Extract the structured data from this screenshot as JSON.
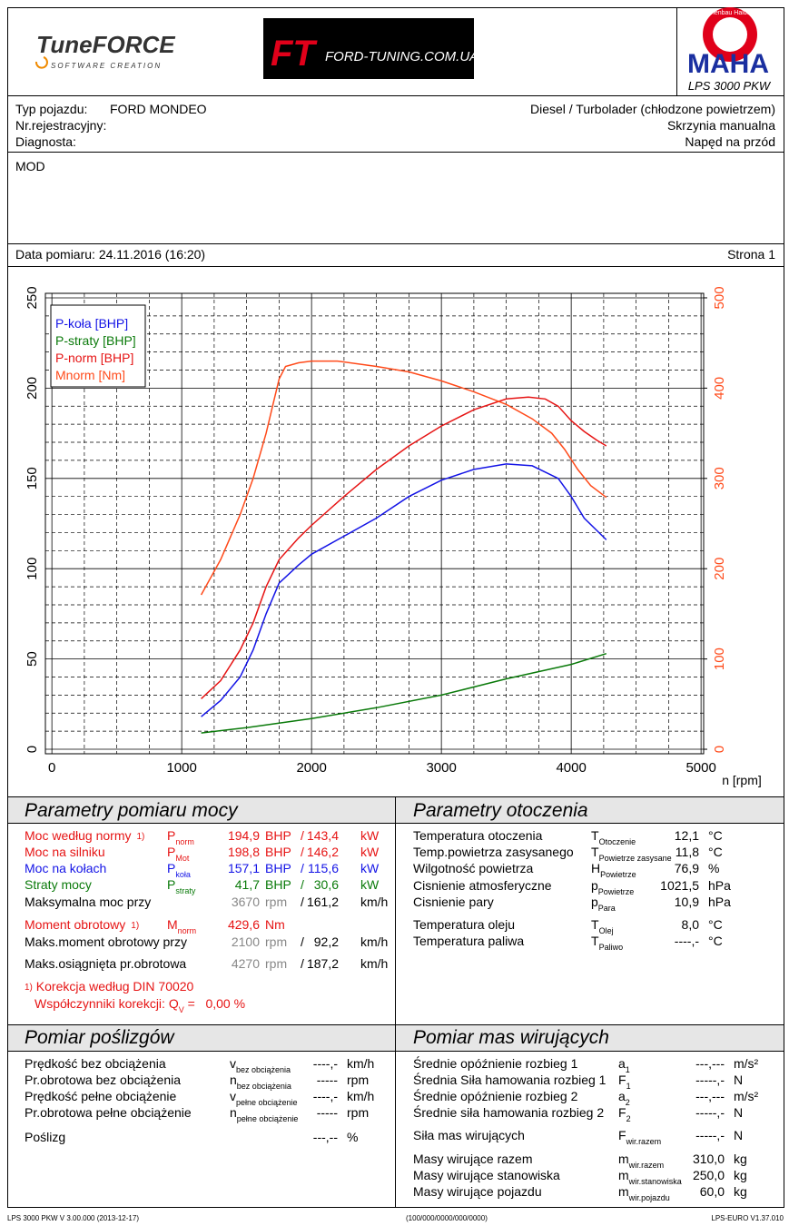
{
  "header": {
    "logo_left": "TuneFORCE",
    "logo_left_sub": "SOFTWARE CREATION",
    "logo_center_mark": "FT",
    "logo_center": "FORD-TUNING.COM.UA",
    "logo_right_ring": "Maschinenbau Haldenwang",
    "logo_right": "MAHA",
    "model": "LPS 3000 PKW"
  },
  "vehicle": {
    "type_label": "Typ pojazdu:",
    "type_value": "FORD MONDEO",
    "engine": "Diesel / Turbolader (chłodzone powietrzem)",
    "reg_label": "Nr.rejestracyjny:",
    "gearbox": "Skrzynia manualna",
    "diag_label": "Diagnosta:",
    "drive": "Napęd na przód"
  },
  "notes": "MOD",
  "date": "Data pomiaru: 24.11.2016 (16:20)",
  "page": "Strona 1",
  "chart_data": {
    "type": "line",
    "xlabel": "n [rpm]",
    "xlim": [
      -50,
      5020
    ],
    "xticks": [
      0,
      1000,
      2000,
      3000,
      4000,
      5000
    ],
    "ylim": [
      -2.5,
      252.5
    ],
    "yticks": [
      0,
      50,
      100,
      150,
      200,
      250
    ],
    "y2lim": [
      -5,
      505
    ],
    "y2ticks": [
      0,
      100,
      200,
      300,
      400,
      500
    ],
    "grid": true,
    "legend": "upper left",
    "series": [
      {
        "name": "P-koła [BHP]",
        "color": "#1414e6",
        "x": [
          1150,
          1300,
          1450,
          1550,
          1650,
          1750,
          1900,
          2000,
          2250,
          2500,
          2750,
          3000,
          3250,
          3500,
          3700,
          3900,
          4000,
          4100,
          4200,
          4270
        ],
        "values": [
          18,
          27,
          40,
          55,
          75,
          92,
          102,
          108,
          118,
          128,
          140,
          149,
          155,
          158,
          157,
          150,
          140,
          128,
          121,
          116
        ]
      },
      {
        "name": "P-straty [BHP]",
        "color": "#0a7a0a",
        "x": [
          1150,
          1500,
          2000,
          2500,
          3000,
          3500,
          4000,
          4270
        ],
        "values": [
          9,
          12,
          17,
          23,
          30,
          39,
          47,
          53
        ]
      },
      {
        "name": "P-norm [BHP]",
        "color": "#e61414",
        "x": [
          1150,
          1300,
          1450,
          1550,
          1650,
          1750,
          1900,
          2000,
          2250,
          2500,
          2750,
          3000,
          3250,
          3500,
          3670,
          3800,
          3900,
          4000,
          4100,
          4200,
          4270
        ],
        "values": [
          28,
          38,
          55,
          70,
          90,
          105,
          117,
          124,
          140,
          155,
          168,
          179,
          188,
          194,
          195,
          194,
          190,
          182,
          176,
          171,
          168
        ]
      },
      {
        "name": "Mnorm [Nm]",
        "color": "#ff4a1a",
        "axis": "y2",
        "x": [
          1150,
          1300,
          1450,
          1550,
          1650,
          1700,
          1750,
          1800,
          1900,
          2000,
          2200,
          2500,
          2750,
          3000,
          3250,
          3500,
          3700,
          3850,
          3950,
          4050,
          4150,
          4270
        ],
        "values": [
          171,
          210,
          260,
          300,
          350,
          380,
          410,
          424,
          428,
          430,
          430,
          424,
          418,
          408,
          396,
          382,
          366,
          350,
          332,
          310,
          292,
          279
        ]
      }
    ]
  },
  "power": {
    "title": "Parametry pomiaru mocy",
    "rows": [
      {
        "label": "Moc według normy",
        "note": "1)",
        "sym": "P",
        "sub": "norm",
        "v1": "194,9",
        "u1": "BHP",
        "sep": "/",
        "v2": "143,4",
        "u2": "kW",
        "color": "#e61414"
      },
      {
        "label": "Moc na silniku",
        "sym": "P",
        "sub": "Mot",
        "v1": "198,8",
        "u1": "BHP",
        "sep": "/",
        "v2": "146,2",
        "u2": "kW",
        "color": "#e61414"
      },
      {
        "label": "Moc na kołach",
        "sym": "P",
        "sub": "koła",
        "v1": "157,1",
        "u1": "BHP",
        "sep": "/",
        "v2": "115,6",
        "u2": "kW",
        "color": "#1414e6"
      },
      {
        "label": "Straty mocy",
        "sym": "P",
        "sub": "straty",
        "v1": "41,7",
        "u1": "BHP",
        "sep": "/",
        "v2": "30,6",
        "u2": "kW",
        "color": "#0a7a0a"
      },
      {
        "label": "Maksymalna moc przy",
        "v1": "3670",
        "u1": "rpm",
        "sep": "/",
        "v2": "161,2",
        "u2": "km/h"
      },
      {
        "label": "Moment obrotowy",
        "note": "1)",
        "sym": "M",
        "sub": "norm",
        "v1": "429,6",
        "u1": "Nm",
        "color": "#e61414"
      },
      {
        "label": "Maks.moment obrotowy przy",
        "v1": "2100",
        "u1": "rpm",
        "sep": "/",
        "v2": "92,2",
        "u2": "km/h"
      },
      {
        "label": "Maks.osiągnięta pr.obrotowa",
        "v1": "4270",
        "u1": "rpm",
        "sep": "/",
        "v2": "187,2",
        "u2": "km/h"
      }
    ],
    "footnote": {
      "note": "1)",
      "text": "Korekcja według DIN 70020",
      "coef_label": "Współczynniki korekcji: Q",
      "coef_sub": "V",
      "coef_eq": "=",
      "coef_value": "0,00",
      "coef_unit": "%"
    }
  },
  "environment": {
    "title": "Parametry otoczenia",
    "rows": [
      {
        "label": "Temperatura otoczenia",
        "sym": "T",
        "sub": "Otoczenie",
        "v1": "12,1",
        "u1": "°C"
      },
      {
        "label": "Temp.powietrza zasysanego",
        "sym": "T",
        "sub": "Powietrze zasysane",
        "v1": "11,8",
        "u1": "°C"
      },
      {
        "label": "Wilgotność powietrza",
        "sym": "H",
        "sub": "Powietrze",
        "v1": "76,9",
        "u1": "%"
      },
      {
        "label": "Cisnienie atmosferyczne",
        "sym": "p",
        "sub": "Powietrze",
        "v1": "1021,5",
        "u1": "hPa"
      },
      {
        "label": "Cisnienie pary",
        "sym": "p",
        "sub": "Para",
        "v1": "10,9",
        "u1": "hPa"
      },
      {
        "label": "Temperatura oleju",
        "sym": "T",
        "sub": "Olej",
        "v1": "8,0",
        "u1": "°C"
      },
      {
        "label": "Temperatura paliwa",
        "sym": "T",
        "sub": "Paliwo",
        "v1": "----,-",
        "u1": "°C"
      }
    ]
  },
  "slip": {
    "title": "Pomiar poślizgów",
    "rows": [
      {
        "label": "Prędkość bez obciążenia",
        "sym": "v",
        "sub": "bez obciążenia",
        "v1": "----,-",
        "u1": "km/h"
      },
      {
        "label": "Pr.obrotowa bez obciążenia",
        "sym": "n",
        "sub": "bez obciążenia",
        "v1": "-----",
        "u1": "rpm"
      },
      {
        "label": "Prędkość pełne obciążenie",
        "sym": "v",
        "sub": "pełne obciążenie",
        "v1": "----,-",
        "u1": "km/h"
      },
      {
        "label": "Pr.obrotowa pełne obciążenie",
        "sym": "n",
        "sub": "pełne obciążenie",
        "v1": "-----",
        "u1": "rpm"
      },
      {
        "label": "Poślizg",
        "v1": "---,--",
        "u1": "%"
      }
    ]
  },
  "masses": {
    "title": "Pomiar mas wirujących",
    "rows": [
      {
        "label": "Średnie opóźnienie rozbieg 1",
        "sym": "a",
        "sub": "1",
        "v1": "---,---",
        "u1": "m/s²"
      },
      {
        "label": "Średnia Siła hamowania rozbieg 1",
        "sym": "F",
        "sub": "1",
        "v1": "-----,-",
        "u1": "N"
      },
      {
        "label": "Średnie opóźnienie rozbieg 2",
        "sym": "a",
        "sub": "2",
        "v1": "---,---",
        "u1": "m/s²"
      },
      {
        "label": "Średnie siła hamowania rozbieg 2",
        "sym": "F",
        "sub": "2",
        "v1": "-----,-",
        "u1": "N"
      },
      {
        "label": "Siła mas wirujących",
        "sym": "F",
        "sub": "wir.razem",
        "v1": "-----,-",
        "u1": "N"
      },
      {
        "label": "Masy wirujące razem",
        "sym": "m",
        "sub": "wir.razem",
        "v1": "310,0",
        "u1": "kg"
      },
      {
        "label": "Masy wirujące stanowiska",
        "sym": "m",
        "sub": "wir.stanowiska",
        "v1": "250,0",
        "u1": "kg"
      },
      {
        "label": "Masy wirujące pojazdu",
        "sym": "m",
        "sub": "wir.pojazdu",
        "v1": "60,0",
        "u1": "kg"
      }
    ]
  },
  "footer": {
    "left": "LPS 3000 PKW V 3.00.000 (2013-12-17)",
    "center": "(100/000/0000/000/0000)",
    "right": "LPS-EURO V1.37.010"
  }
}
